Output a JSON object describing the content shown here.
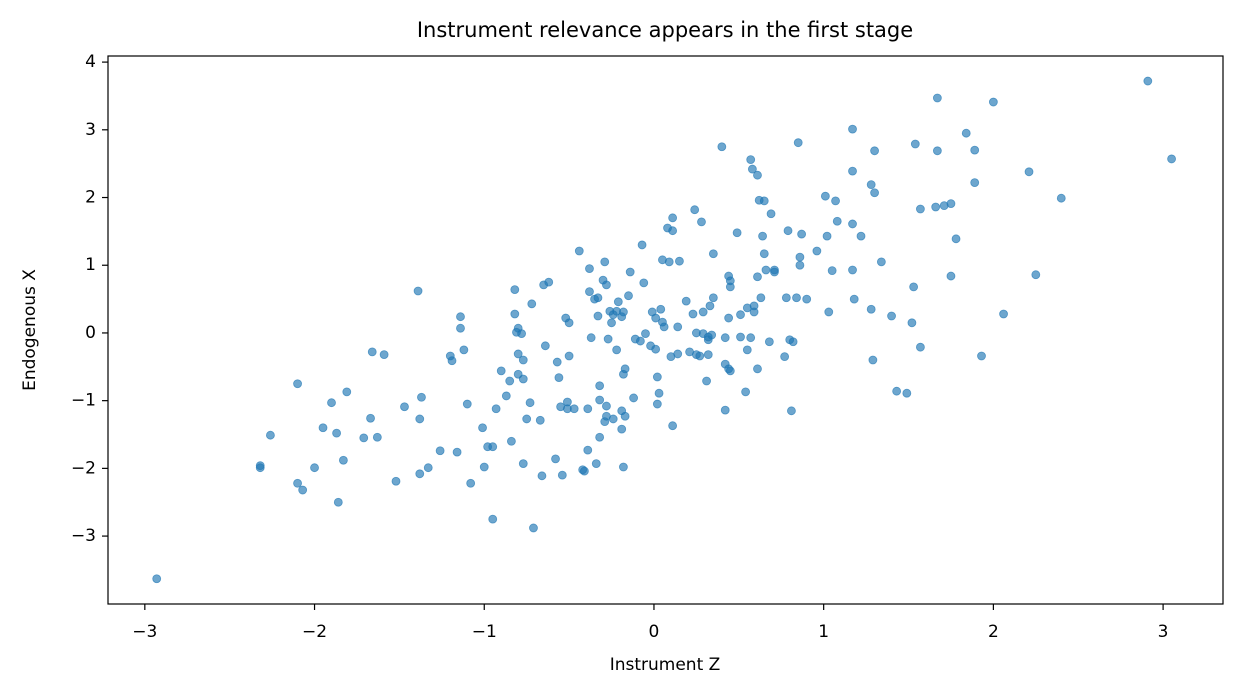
{
  "chart_data": {
    "type": "scatter",
    "title": "Instrument relevance appears in the first stage",
    "x_label": "Instrument Z",
    "y_label": "Endogenous X",
    "color": "#1f77b4",
    "grid": false,
    "xlim": [
      -3.217,
      3.353
    ],
    "ylim": [
      -4.003,
      4.09
    ],
    "xticks": [
      {
        "value": -3,
        "label": "−3"
      },
      {
        "value": -2,
        "label": "−2"
      },
      {
        "value": -1,
        "label": "−1"
      },
      0,
      1,
      2,
      3
    ],
    "yticks": [
      {
        "value": -3,
        "label": "−3"
      },
      {
        "value": -2,
        "label": "−2"
      },
      {
        "value": -1,
        "label": "−1"
      },
      0,
      1,
      2,
      3,
      4
    ],
    "x": [
      -2.93,
      -2.32,
      -2.32,
      -2.26,
      -2.1,
      -2.1,
      -2.07,
      -2.0,
      -1.95,
      -1.9,
      -1.87,
      -1.86,
      -1.83,
      -1.81,
      -1.71,
      -1.67,
      -1.66,
      -1.63,
      -1.59,
      -1.52,
      -1.47,
      -1.39,
      -1.38,
      -1.38,
      -1.37,
      -1.33,
      -1.26,
      -1.2,
      -1.19,
      -1.16,
      -1.14,
      -1.14,
      -1.12,
      -1.1,
      -1.08,
      -1.01,
      -1.0,
      -0.98,
      -0.95,
      -0.95,
      -0.93,
      -0.9,
      -0.87,
      -0.85,
      -0.84,
      -0.82,
      -0.82,
      -0.81,
      -0.8,
      -0.8,
      -0.8,
      -0.78,
      -0.77,
      -0.77,
      -0.77,
      -0.75,
      -0.73,
      -0.72,
      -0.71,
      -0.67,
      -0.66,
      -0.65,
      -0.64,
      -0.62,
      -0.58,
      -0.57,
      -0.56,
      -0.55,
      -0.54,
      -0.52,
      -0.51,
      -0.51,
      -0.5,
      -0.5,
      -0.47,
      -0.44,
      -0.42,
      -0.41,
      -0.39,
      -0.39,
      -0.38,
      -0.38,
      -0.37,
      -0.35,
      -0.34,
      -0.33,
      -0.33,
      -0.32,
      -0.32,
      -0.32,
      -0.3,
      -0.29,
      -0.29,
      -0.28,
      -0.28,
      -0.28,
      -0.27,
      -0.26,
      -0.25,
      -0.24,
      -0.24,
      -0.22,
      -0.22,
      -0.21,
      -0.19,
      -0.19,
      -0.19,
      -0.18,
      -0.18,
      -0.18,
      -0.17,
      -0.17,
      -0.15,
      -0.14,
      -0.12,
      -0.11,
      -0.08,
      -0.07,
      -0.06,
      -0.05,
      -0.02,
      -0.01,
      0.01,
      0.02,
      0.02,
      0.01,
      0.03,
      0.04,
      0.05,
      0.05,
      0.06,
      0.08,
      0.09,
      0.1,
      0.11,
      0.11,
      0.11,
      0.14,
      0.14,
      0.15,
      0.19,
      0.21,
      0.23,
      0.24,
      0.25,
      0.25,
      0.27,
      0.28,
      0.29,
      0.29,
      0.31,
      0.32,
      0.32,
      0.32,
      0.33,
      0.34,
      0.35,
      0.35,
      0.4,
      0.42,
      0.42,
      0.42,
      0.44,
      0.44,
      0.44,
      0.45,
      0.45,
      0.45,
      0.49,
      0.51,
      0.51,
      0.54,
      0.55,
      0.55,
      0.57,
      0.57,
      0.58,
      0.59,
      0.59,
      0.61,
      0.61,
      0.61,
      0.62,
      0.63,
      0.64,
      0.65,
      0.65,
      0.66,
      0.68,
      0.69,
      0.71,
      0.71,
      0.77,
      0.78,
      0.79,
      0.8,
      0.81,
      0.82,
      0.84,
      0.85,
      0.86,
      0.86,
      0.87,
      0.9,
      0.96,
      1.01,
      1.02,
      1.03,
      1.05,
      1.07,
      1.08,
      1.17,
      1.17,
      1.17,
      1.17,
      1.18,
      1.22,
      1.28,
      1.28,
      1.29,
      1.3,
      1.3,
      1.34,
      1.4,
      1.43,
      1.49,
      1.52,
      1.53,
      1.54,
      1.57,
      1.57,
      1.67,
      1.67,
      1.66,
      1.71,
      1.75,
      1.75,
      1.78,
      1.84,
      1.89,
      1.89,
      1.93,
      2.0,
      2.06,
      2.21,
      2.25,
      2.4,
      2.91,
      3.05
    ],
    "values": [
      -3.63,
      -1.96,
      -1.99,
      -1.51,
      -0.75,
      -2.22,
      -2.32,
      -1.99,
      -1.4,
      -1.03,
      -1.48,
      -2.5,
      -1.88,
      -0.87,
      -1.55,
      -1.26,
      -0.28,
      -1.54,
      -0.32,
      -2.19,
      -1.09,
      0.62,
      -2.08,
      -1.27,
      -0.95,
      -1.99,
      -1.74,
      -0.34,
      -0.41,
      -1.76,
      0.07,
      0.24,
      -0.25,
      -1.05,
      -2.22,
      -1.4,
      -1.98,
      -1.68,
      -1.68,
      -2.75,
      -1.12,
      -0.56,
      -0.93,
      -0.71,
      -1.6,
      0.64,
      0.28,
      0.01,
      0.07,
      -0.31,
      -0.61,
      -0.01,
      -0.4,
      -0.68,
      -1.93,
      -1.27,
      -1.03,
      0.43,
      -2.88,
      -1.29,
      -2.11,
      0.71,
      -0.19,
      0.75,
      -1.86,
      -0.43,
      -0.66,
      -1.09,
      -2.1,
      0.22,
      -1.02,
      -1.12,
      0.15,
      -0.34,
      -1.12,
      1.21,
      -2.02,
      -2.04,
      -1.73,
      -1.12,
      0.95,
      0.61,
      -0.07,
      0.5,
      -1.93,
      0.52,
      0.25,
      -0.78,
      -0.99,
      -1.54,
      0.78,
      1.05,
      -1.31,
      -1.08,
      0.71,
      -1.23,
      -0.09,
      0.32,
      0.15,
      0.27,
      -1.27,
      0.32,
      -0.25,
      0.46,
      -1.15,
      0.24,
      -1.42,
      0.31,
      -0.61,
      -1.98,
      -1.23,
      -0.53,
      0.55,
      0.9,
      -0.96,
      -0.09,
      -0.12,
      1.3,
      0.74,
      -0.01,
      -0.19,
      0.31,
      0.22,
      -0.65,
      -1.05,
      -0.24,
      -0.89,
      0.35,
      1.08,
      0.16,
      0.09,
      1.55,
      1.05,
      -0.35,
      1.7,
      1.51,
      -1.37,
      0.09,
      -0.31,
      1.06,
      0.47,
      -0.28,
      0.28,
      1.82,
      0.0,
      -0.32,
      -0.34,
      1.64,
      -0.01,
      0.31,
      -0.71,
      -0.1,
      -0.06,
      -0.32,
      0.4,
      -0.03,
      1.17,
      0.52,
      2.75,
      -0.07,
      -0.46,
      -1.14,
      0.84,
      -0.53,
      0.22,
      -0.56,
      0.77,
      0.68,
      1.48,
      0.27,
      -0.06,
      -0.87,
      0.37,
      -0.25,
      2.56,
      -0.07,
      2.42,
      0.31,
      0.4,
      -0.53,
      0.83,
      2.33,
      1.96,
      0.52,
      1.43,
      1.95,
      1.17,
      0.93,
      -0.13,
      1.76,
      0.93,
      0.9,
      -0.35,
      0.52,
      1.51,
      -0.1,
      -1.15,
      -0.13,
      0.52,
      2.81,
      1.0,
      1.12,
      1.46,
      0.5,
      1.21,
      2.02,
      1.43,
      0.31,
      0.92,
      1.95,
      1.65,
      3.01,
      2.39,
      1.61,
      0.93,
      0.5,
      1.43,
      2.19,
      0.35,
      -0.4,
      2.69,
      2.07,
      1.05,
      0.25,
      -0.86,
      -0.89,
      0.15,
      0.68,
      2.79,
      -0.21,
      1.83,
      3.47,
      2.69,
      1.86,
      1.88,
      1.91,
      0.84,
      1.39,
      2.95,
      2.22,
      2.7,
      -0.34,
      3.41,
      0.28,
      2.38,
      0.86,
      1.99,
      3.72,
      2.57
    ]
  }
}
